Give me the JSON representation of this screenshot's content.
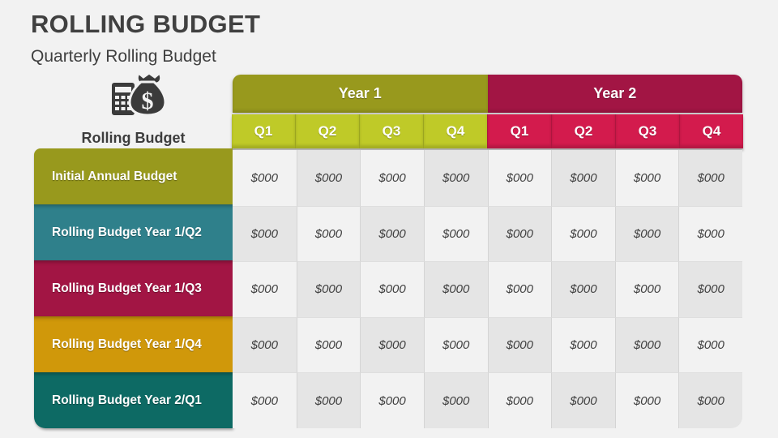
{
  "slide": {
    "title": "ROLLING BUDGET",
    "subtitle": "Quarterly Rolling Budget",
    "background": "#f2f2f2",
    "text_color": "#404040"
  },
  "icon": {
    "name": "money-bag-calculator-icon",
    "caption": "Rolling Budget",
    "color": "#3b3b3b",
    "dollar_sign": "$"
  },
  "table": {
    "year_headers": [
      {
        "label": "Year 1",
        "color": "#98991d"
      },
      {
        "label": "Year 2",
        "color": "#a21544"
      }
    ],
    "quarter_headers": [
      {
        "label": "Q1",
        "color": "#bfca28"
      },
      {
        "label": "Q2",
        "color": "#bfca28"
      },
      {
        "label": "Q3",
        "color": "#bfca28"
      },
      {
        "label": "Q4",
        "color": "#bfca28"
      },
      {
        "label": "Q1",
        "color": "#d31b4d"
      },
      {
        "label": "Q2",
        "color": "#d31b4d"
      },
      {
        "label": "Q3",
        "color": "#d31b4d"
      },
      {
        "label": "Q4",
        "color": "#d31b4d"
      }
    ],
    "rows": [
      {
        "label": "Initial Annual Budget",
        "color": "#98991d",
        "values": [
          "$000",
          "$000",
          "$000",
          "$000",
          "$000",
          "$000",
          "$000",
          "$000"
        ]
      },
      {
        "label": "Rolling Budget Year 1/Q2",
        "color": "#2f808b",
        "values": [
          "$000",
          "$000",
          "$000",
          "$000",
          "$000",
          "$000",
          "$000",
          "$000"
        ]
      },
      {
        "label": "Rolling Budget Year 1/Q3",
        "color": "#a21544",
        "values": [
          "$000",
          "$000",
          "$000",
          "$000",
          "$000",
          "$000",
          "$000",
          "$000"
        ]
      },
      {
        "label": "Rolling Budget Year 1/Q4",
        "color": "#d0980a",
        "values": [
          "$000",
          "$000",
          "$000",
          "$000",
          "$000",
          "$000",
          "$000",
          "$000"
        ]
      },
      {
        "label": "Rolling Budget Year 2/Q1",
        "color": "#0d6a64",
        "values": [
          "$000",
          "$000",
          "$000",
          "$000",
          "$000",
          "$000",
          "$000",
          "$000"
        ]
      }
    ],
    "cell_colors": {
      "light": "#f2f2f2",
      "dark": "#e5e5e5"
    }
  }
}
